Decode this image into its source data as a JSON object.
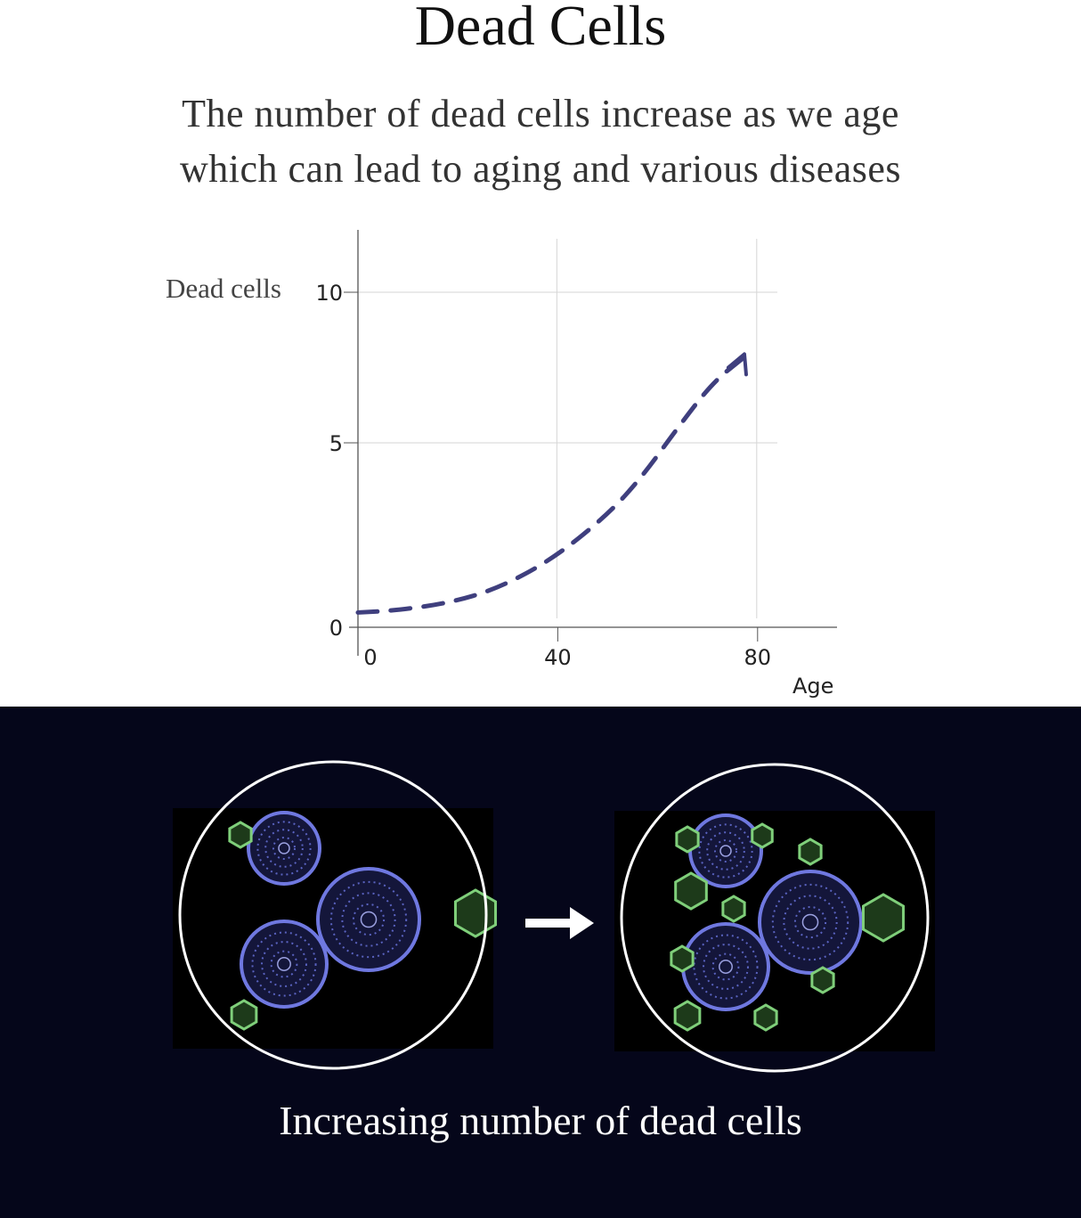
{
  "header": {
    "title": "Dead Cells",
    "subtitle_lines": [
      "The number of dead cells increase as we age",
      "which can lead to aging and various diseases"
    ]
  },
  "chart_data": {
    "type": "line",
    "title": "",
    "xlabel": "Age",
    "ylabel": "Dead cells",
    "x_ticks": [
      "0",
      "40",
      "80"
    ],
    "y_ticks": [
      "0",
      "5",
      "10"
    ],
    "xlim": [
      0,
      95
    ],
    "ylim": [
      0,
      11
    ],
    "grid": true,
    "line_style": "dashed with arrowhead",
    "color": "#3f3f7e",
    "series": [
      {
        "x": [
          0,
          7,
          18,
          28,
          39,
          50,
          57,
          64,
          71,
          77
        ],
        "y": [
          0.4,
          0.45,
          0.65,
          1.05,
          1.85,
          3.05,
          4.1,
          5.5,
          7.0,
          7.8
        ]
      }
    ]
  },
  "illustration": {
    "before_label": "",
    "arrow_icon": "right-arrow-icon",
    "caption": "Increasing number of dead cells",
    "colors": {
      "background": "#05061a",
      "healthy_cell": "#6f78e0",
      "dead_cell": "#7fcf7a"
    }
  }
}
